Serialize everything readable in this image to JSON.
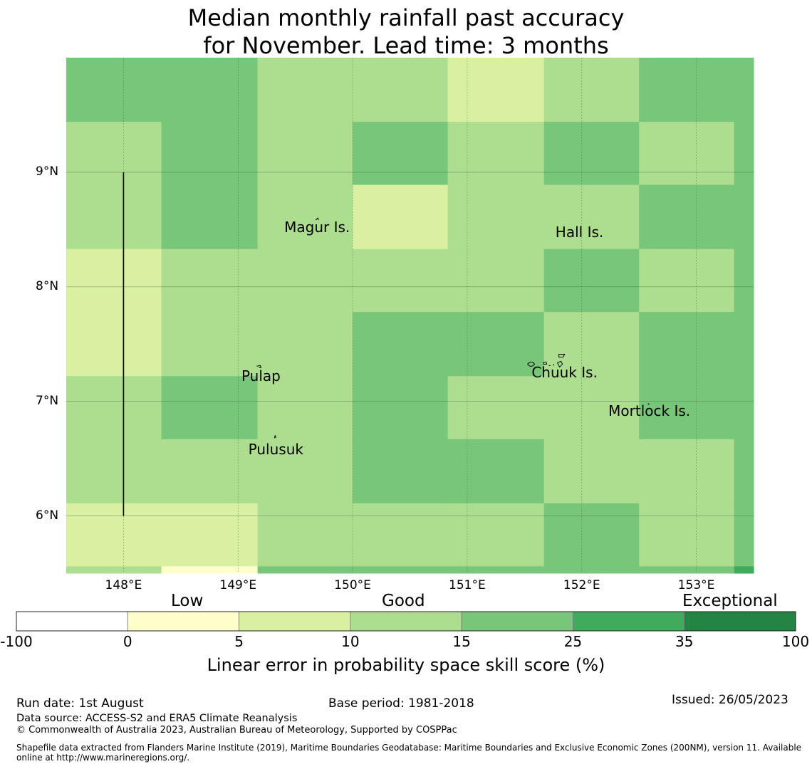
{
  "title": {
    "line1": "Median monthly rainfall past accuracy",
    "line2": "for November. Lead time: 3 months"
  },
  "map": {
    "lon_range": [
      147.5,
      153.5
    ],
    "lat_range": [
      5.5,
      10.0
    ],
    "lat_ticks": [
      {
        "value": 9,
        "label": "9°N"
      },
      {
        "value": 8,
        "label": "8°N"
      },
      {
        "value": 7,
        "label": "7°N"
      },
      {
        "value": 6,
        "label": "6°N"
      }
    ],
    "lon_ticks": [
      {
        "value": 148,
        "label": "148°E"
      },
      {
        "value": 149,
        "label": "149°E"
      },
      {
        "value": 150,
        "label": "150°E"
      },
      {
        "value": 151,
        "label": "151°E"
      },
      {
        "value": 152,
        "label": "152°E"
      },
      {
        "value": 153,
        "label": "153°E"
      }
    ],
    "cell_lon_edges": [
      147.5,
      148.33,
      149.17,
      150.0,
      150.83,
      151.67,
      152.5,
      153.33,
      153.5
    ],
    "cell_lat_edges": [
      10.0,
      9.44,
      8.89,
      8.33,
      7.78,
      7.22,
      6.67,
      6.11,
      5.56,
      5.5
    ],
    "skill_class_grid": [
      [
        4,
        4,
        3,
        3,
        2,
        3,
        4,
        4
      ],
      [
        3,
        4,
        3,
        4,
        3,
        4,
        3,
        4
      ],
      [
        3,
        4,
        3,
        2,
        3,
        3,
        4,
        4
      ],
      [
        2,
        3,
        3,
        3,
        3,
        4,
        3,
        4
      ],
      [
        2,
        3,
        3,
        4,
        4,
        3,
        4,
        4
      ],
      [
        3,
        4,
        3,
        4,
        3,
        3,
        4,
        4
      ],
      [
        3,
        3,
        3,
        4,
        4,
        3,
        3,
        4
      ],
      [
        2,
        2,
        3,
        3,
        3,
        4,
        3,
        4
      ],
      [
        3,
        1,
        4,
        4,
        4,
        4,
        4,
        5
      ]
    ],
    "eez_boundary": {
      "lon": 148.0,
      "lat_from": 6.0,
      "lat_to": 9.0
    },
    "places": [
      {
        "name": "Magur Is.",
        "lon": 149.69,
        "lat": 8.52
      },
      {
        "name": "Hall Is.",
        "lon": 151.98,
        "lat": 8.48
      },
      {
        "name": "Pulap",
        "lon": 149.2,
        "lat": 7.22
      },
      {
        "name": "Chuuk Is.",
        "lon": 151.85,
        "lat": 7.25
      },
      {
        "name": "Mortlock Is.",
        "lon": 152.59,
        "lat": 6.92
      },
      {
        "name": "Pulusuk",
        "lon": 149.33,
        "lat": 6.58
      }
    ]
  },
  "colorbar": {
    "categories": [
      "Low",
      "Good",
      "Exceptional"
    ],
    "ticks": [
      "-100",
      "0",
      "5",
      "10",
      "15",
      "25",
      "35",
      "100"
    ],
    "colors": [
      "#ffffff",
      "#ffffcc",
      "#d9f0a3",
      "#addd8e",
      "#78c679",
      "#41ab5d",
      "#238443"
    ],
    "label": "Linear error in probability space skill score (%)"
  },
  "footer": {
    "run_date": "Run date: 1st August",
    "base_period": "Base period: 1981-2018",
    "issued": "Issued: 26/05/2023",
    "data_source": "Data source: ACCESS-S2 and ERA5 Climate Reanalysis",
    "copyright": "© Commonwealth of Australia 2023, Australian Bureau of Meteorology, Supported by COSPPac",
    "shapefile_line1": "Shapefile data extracted from Flanders Marine Institute (2019), Maritime Boundaries Geodatabase: Maritime Boundaries and Exclusive Economic Zones (200NM), version 11. Available",
    "shapefile_line2": "online at http://www.marineregions.org/."
  }
}
